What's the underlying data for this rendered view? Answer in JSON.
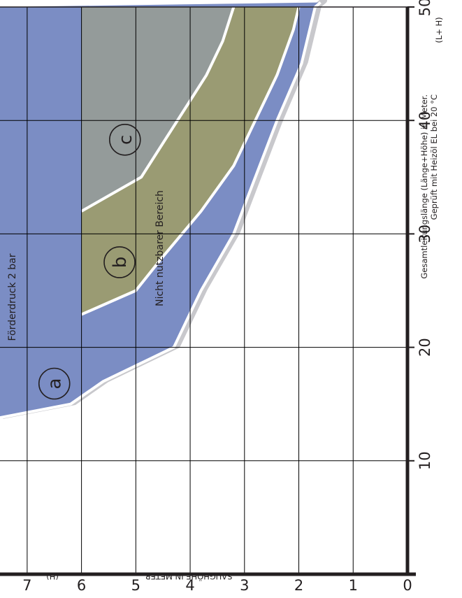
{
  "chart_data": {
    "type": "area",
    "title": "Förderdruck 2 bar",
    "xlabel": "Gesamtleitungslänge (Länge+Höhe) in Meter.",
    "xlabel_note": "Geprüft mit Heizöl EL bei 20 °C",
    "x_unit": "(L+ H)",
    "ylabel": "SAUGHÖHE IN METER",
    "y_unit": "(H)",
    "xlim": [
      0,
      50
    ],
    "ylim": [
      0,
      7.5
    ],
    "x_ticks": [
      "10",
      "20",
      "30",
      "40",
      "50"
    ],
    "y_ticks": [
      "0",
      "1",
      "2",
      "3",
      "4",
      "5",
      "6",
      "7"
    ],
    "grid": true,
    "region_label": "Nicht nutzbarer Bereich",
    "colors": {
      "a": "#7b8dc4",
      "b": "#9a9b73",
      "c": "#949b9a",
      "shadow": "#c8c8cc",
      "grid": "#000000"
    },
    "series": [
      {
        "name": "a",
        "label": "a",
        "label_at": [
          16.8,
          6.5
        ],
        "x": [
          13.8,
          15,
          17,
          20,
          25,
          30,
          35,
          40,
          45,
          50,
          50.4
        ],
        "y": [
          7.5,
          6.2,
          5.6,
          4.3,
          3.8,
          3.2,
          2.8,
          2.4,
          1.95,
          1.7,
          1.6
        ]
      },
      {
        "name": "b",
        "label": "b",
        "label_at": [
          27.5,
          5.3
        ],
        "x": [
          22.9,
          25,
          28,
          32,
          36,
          40,
          44,
          48,
          50
        ],
        "y": [
          6,
          5.0,
          4.5,
          3.8,
          3.2,
          2.8,
          2.4,
          2.1,
          2.0
        ]
      },
      {
        "name": "c",
        "label": "c",
        "label_at": [
          38.3,
          5.2
        ],
        "x": [
          32,
          35,
          38,
          41,
          44,
          47,
          50
        ],
        "y": [
          6,
          4.9,
          4.5,
          4.1,
          3.7,
          3.4,
          3.2
        ]
      }
    ]
  }
}
